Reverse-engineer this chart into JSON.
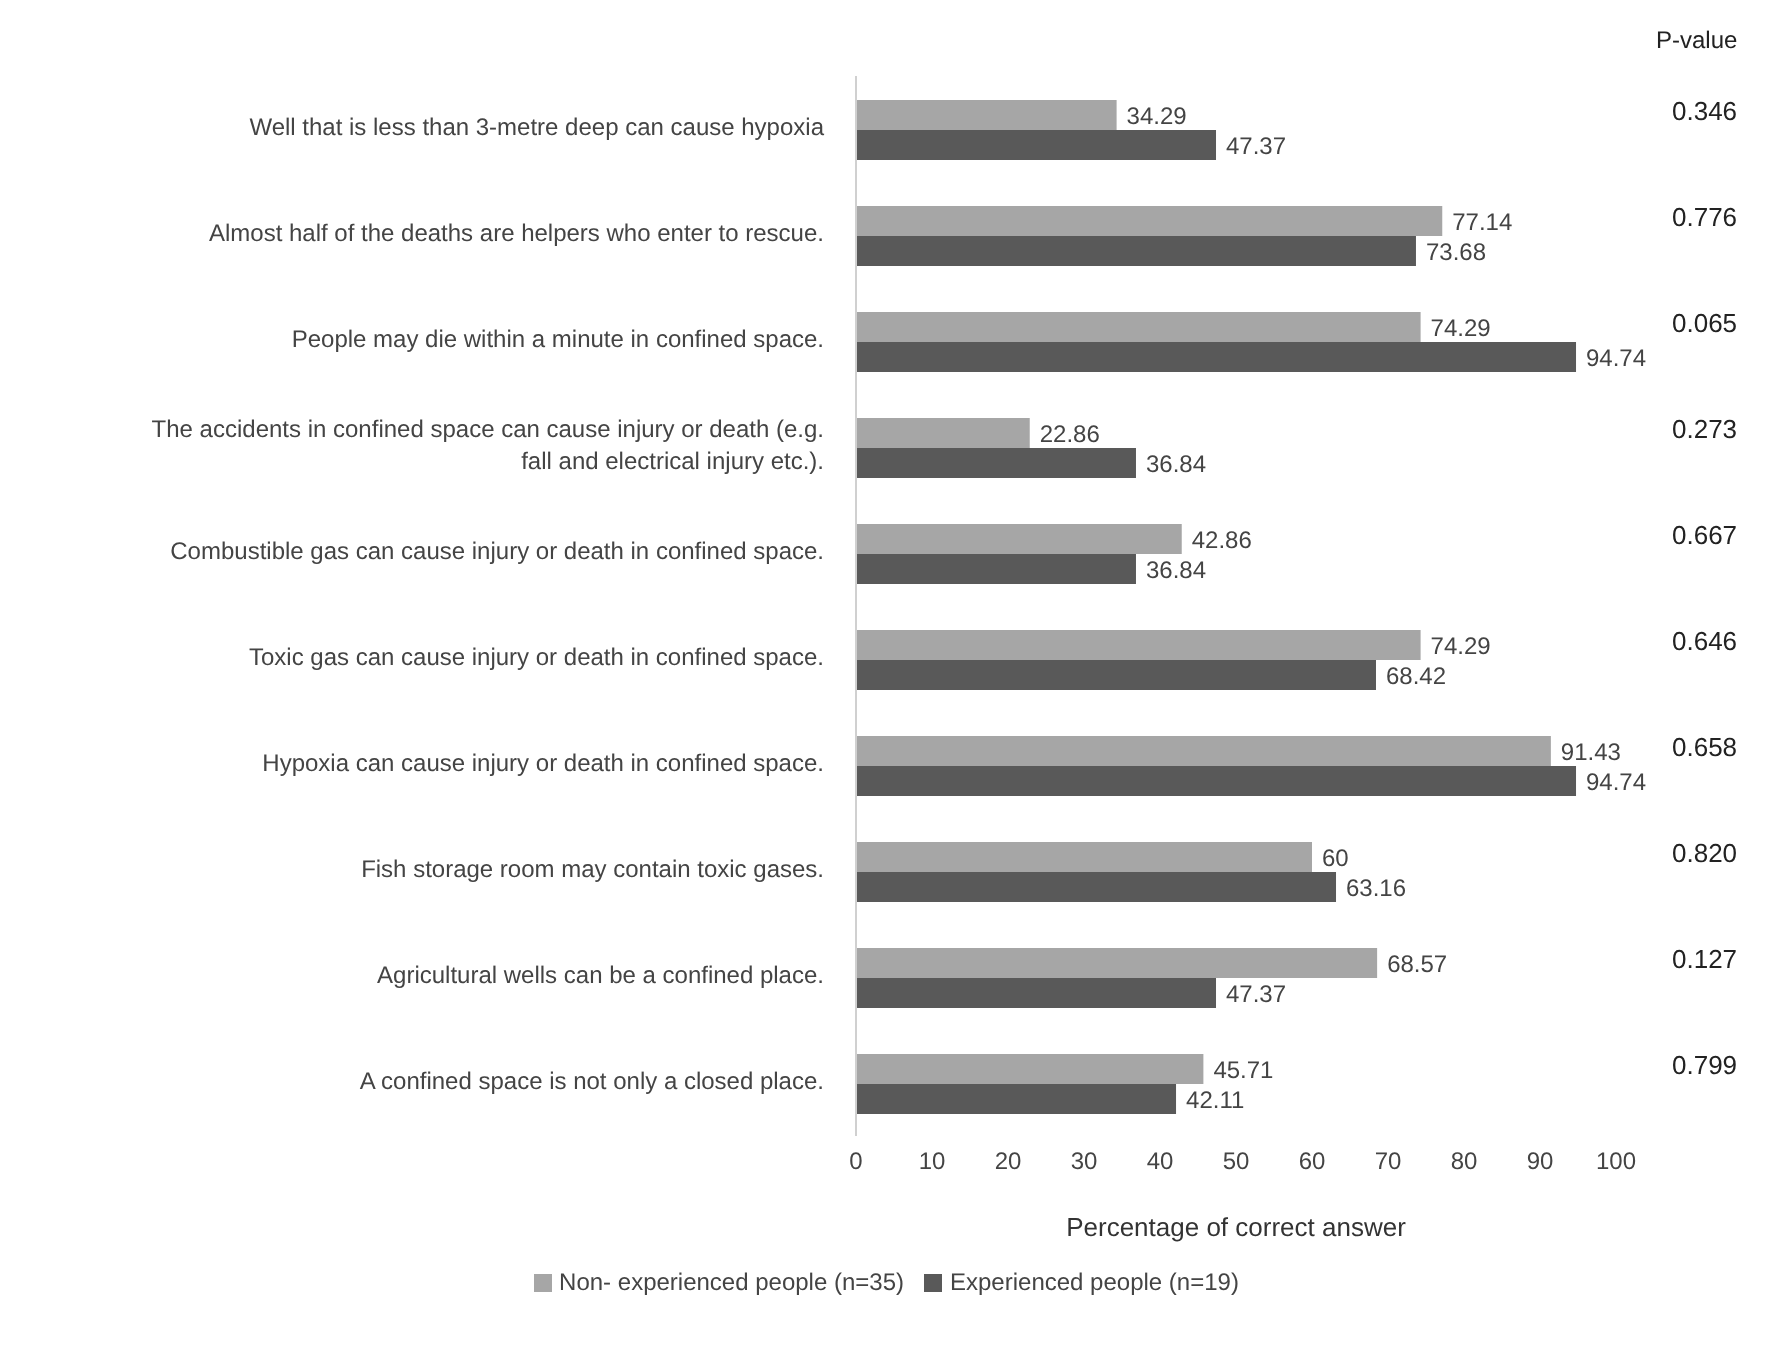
{
  "chart_data": {
    "type": "bar",
    "orientation": "horizontal",
    "categories": [
      "Well that is less than 3-metre deep can cause hypoxia",
      "Almost half of the deaths are helpers who enter to rescue.",
      "People may die within a minute in confined space.",
      "The accidents in confined space  can cause injury or death (e.g. fall and electrical injury etc.).",
      "Combustible gas can cause injury or death in confined space.",
      "Toxic gas can cause injury or death in confined space.",
      "Hypoxia can cause injury or death in confined space.",
      "Fish storage room may contain toxic gases.",
      "Agricultural wells can be a confined place.",
      "A confined space is not only a closed place."
    ],
    "y2_categories": [
      "0.346",
      "0.776",
      "0.065",
      "0.273",
      "0.667",
      "0.646",
      "0.658",
      "0.820",
      "0.127",
      "0.799"
    ],
    "y2label": "P-value",
    "xlabel": "Percentage of correct answer",
    "xlim": [
      0,
      100
    ],
    "xticks": [
      0,
      10,
      20,
      30,
      40,
      50,
      60,
      70,
      80,
      90,
      100
    ],
    "series": [
      {
        "name": "Non- experienced people  (n=35)",
        "color": "#a6a6a6",
        "values": [
          34.29,
          77.14,
          74.29,
          22.86,
          42.86,
          74.29,
          91.43,
          60,
          68.57,
          45.71
        ]
      },
      {
        "name": "Experienced people (n=19)",
        "color": "#595959",
        "values": [
          47.37,
          73.68,
          94.74,
          36.84,
          36.84,
          68.42,
          94.74,
          63.16,
          47.37,
          42.11
        ]
      }
    ],
    "data_labels": true,
    "grid": false,
    "legend": "bottom"
  }
}
